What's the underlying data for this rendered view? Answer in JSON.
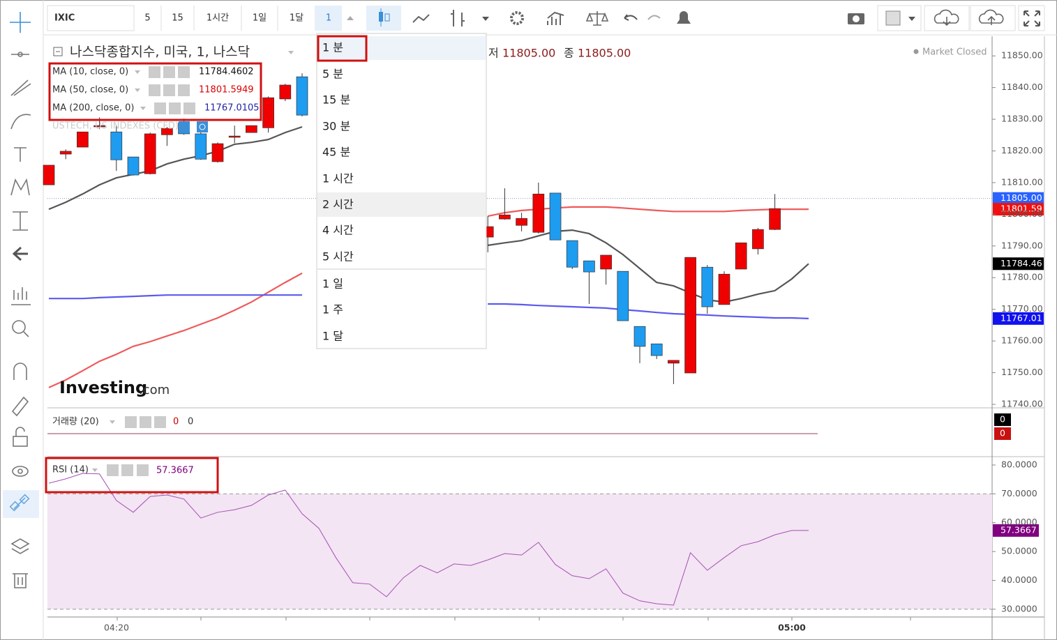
{
  "toolbar": {
    "symbol": "IXIC",
    "intervals": [
      "5",
      "15",
      "1시간",
      "1일",
      "1달"
    ],
    "active_interval": "1"
  },
  "legend": {
    "title": "나스닥종합지수, 미국, 1, 나스닥",
    "low_label": "저",
    "low_value": "11805.00",
    "close_label": "종",
    "close_value": "11805.00",
    "status": "Market Closed",
    "overlay": "USTECH, US INDEXES (CFD)"
  },
  "logo": {
    "brand": "Investing",
    "suffix": ".com"
  },
  "interval_menu": [
    "1 분",
    "5 분",
    "15 분",
    "30 분",
    "45 분",
    "1 시간",
    "2 시간",
    "4 시간",
    "5 시간",
    "1 일",
    "1 주",
    "1 달"
  ],
  "volume": {
    "name": "거래량 (20)",
    "values": [
      "0",
      "0"
    ],
    "tags": [
      "0",
      "0"
    ]
  },
  "chart_data": [
    {
      "type": "candlestick",
      "up_color": "#f00000",
      "down_color": "#1e9cf0",
      "ohlc": [
        [
          11809.3,
          11815.5,
          11809.3,
          11815.5
        ],
        [
          11819.0,
          11820.5,
          11817.4,
          11819.9
        ],
        [
          11821.2,
          11826.0,
          11821.2,
          11826.0
        ],
        [
          11827.6,
          11830.6,
          11826.9,
          11828.0
        ],
        [
          11826.0,
          11828.0,
          11813.7,
          11817.2
        ],
        [
          11818.1,
          11818.1,
          11812.2,
          11812.4
        ],
        [
          11812.8,
          11825.8,
          11812.6,
          11825.4
        ],
        [
          11825.1,
          11827.6,
          11821.6,
          11827.1
        ],
        [
          11828.9,
          11830.2,
          11825.1,
          11825.4
        ],
        [
          11825.4,
          11826.9,
          11817.2,
          11817.4
        ],
        [
          11816.6,
          11822.7,
          11816.3,
          11822.3
        ],
        [
          11824.3,
          11828.0,
          11822.5,
          11824.7
        ],
        [
          11825.8,
          11828.0,
          11825.8,
          11828.0
        ],
        [
          11827.3,
          11837.2,
          11825.8,
          11836.8
        ],
        [
          11836.4,
          11841.2,
          11835.7,
          11840.8
        ],
        [
          11843.4,
          11844.5,
          11830.9,
          11831.3
        ],
        null,
        null,
        null,
        null,
        null,
        null,
        null,
        null,
        null,
        null,
        [
          11792.8,
          11799.4,
          11788.0,
          11796.1
        ],
        [
          11798.5,
          11808.2,
          11798.3,
          11799.8
        ],
        [
          11796.5,
          11800.5,
          11794.6,
          11798.7
        ],
        [
          11794.3,
          11810.0,
          11793.9,
          11806.4
        ],
        [
          11806.7,
          11806.7,
          11791.9,
          11791.9
        ],
        [
          11791.7,
          11791.7,
          11782.7,
          11783.3
        ],
        [
          11785.3,
          11785.3,
          11771.7,
          11781.8
        ],
        [
          11782.7,
          11787.1,
          11777.8,
          11787.1
        ],
        [
          11782.0,
          11782.0,
          11766.4,
          11766.4
        ],
        [
          11764.6,
          11764.6,
          11753.0,
          11758.3
        ],
        [
          11759.1,
          11759.1,
          11754.3,
          11755.4
        ],
        [
          11753.0,
          11753.9,
          11746.4,
          11753.9
        ],
        [
          11749.9,
          11786.4,
          11749.9,
          11786.4
        ],
        [
          11783.3,
          11784.0,
          11768.6,
          11770.8
        ],
        [
          11771.5,
          11782.0,
          11771.5,
          11781.1
        ],
        [
          11782.7,
          11791.0,
          11782.7,
          11791.0
        ],
        [
          11789.1,
          11795.7,
          11787.3,
          11795.2
        ],
        [
          11795.2,
          11806.4,
          11795.0,
          11801.8
        ],
        null,
        null
      ],
      "series": [
        {
          "name": "MA (10, close, 0)",
          "color": "#555555",
          "label_color": "#111111",
          "last_label": "11784.4602",
          "tag": "11784.46",
          "tag_color": "#000000",
          "values": [
            11801.6,
            11803.8,
            11806.4,
            11809.3,
            11811.5,
            11812.6,
            11813.7,
            11815.9,
            11817.4,
            11818.5,
            11819.9,
            11822.1,
            11822.7,
            11823.6,
            11825.8,
            11827.6,
            null,
            null,
            null,
            null,
            null,
            null,
            null,
            null,
            null,
            null,
            11790.2,
            11791.0,
            11791.7,
            11793.2,
            11794.6,
            11795.0,
            11793.9,
            11791.0,
            11787.3,
            11782.9,
            11778.5,
            11777.4,
            11775.2,
            11773.0,
            11772.3,
            11773.4,
            11774.8,
            11775.9,
            11779.6,
            11784.4
          ]
        },
        {
          "name": "MA (50, close, 0)",
          "color": "#ee5a5a",
          "label_color": "#dd0000",
          "last_label": "11801.5949",
          "tag": "11801.59",
          "tag_color": "#ee1111",
          "values": [
            11745.3,
            11747.7,
            11750.6,
            11753.6,
            11755.8,
            11758.3,
            11759.8,
            11761.6,
            11763.3,
            11765.3,
            11767.3,
            11769.7,
            11772.3,
            11775.4,
            11778.5,
            11781.4,
            null,
            null,
            null,
            null,
            null,
            null,
            null,
            null,
            null,
            null,
            11799.4,
            11800.5,
            11801.2,
            11801.6,
            11802.0,
            11802.3,
            11802.3,
            11802.3,
            11802.0,
            11801.6,
            11801.2,
            11800.9,
            11800.9,
            11800.9,
            11800.9,
            11801.2,
            11801.4,
            11801.6,
            11801.6,
            11801.6
          ]
        },
        {
          "name": "MA (200, close, 0)",
          "color": "#5a5aee",
          "label_color": "#2222aa",
          "last_label": "11767.0105",
          "tag": "11767.01",
          "tag_color": "#1111ee",
          "values": [
            11773.4,
            11773.4,
            11773.4,
            11773.7,
            11773.9,
            11774.1,
            11774.3,
            11774.5,
            11774.5,
            11774.5,
            11774.5,
            11774.5,
            11774.5,
            11774.5,
            11774.5,
            11774.5,
            null,
            null,
            null,
            null,
            null,
            null,
            null,
            null,
            null,
            null,
            11771.7,
            11771.7,
            11771.5,
            11771.2,
            11771.0,
            11770.8,
            11770.6,
            11770.4,
            11769.9,
            11769.5,
            11769.0,
            11768.6,
            11768.4,
            11768.2,
            11767.9,
            11767.7,
            11767.5,
            11767.3,
            11767.3,
            11767.1
          ]
        }
      ],
      "last_price": 11805,
      "last_price_label": "11805.00",
      "last_price_color": "#2962ff",
      "ylim": [
        11738.9,
        11856.2
      ],
      "yticks": [
        {
          "value": 11740,
          "label": "11740.00"
        },
        {
          "value": 11750,
          "label": "11750.00"
        },
        {
          "value": 11760,
          "label": "11760.00"
        },
        {
          "value": 11770,
          "label": "11770.00"
        },
        {
          "value": 11780,
          "label": "11780.00"
        },
        {
          "value": 11790,
          "label": "11790.00"
        },
        {
          "value": 11800,
          "label": "11800.00"
        },
        {
          "value": 11810,
          "label": "11810.00"
        },
        {
          "value": 11820,
          "label": "11820.00"
        },
        {
          "value": 11830,
          "label": "11830.00"
        },
        {
          "value": 11840,
          "label": "11840.00"
        },
        {
          "value": 11850,
          "label": "11850.00"
        }
      ],
      "x_labels": [
        "04:20",
        "05:00"
      ]
    },
    {
      "type": "line",
      "name": "RSI (14)",
      "color": "#a64fb5",
      "band_color": "#f3e5f3",
      "last_label": "57.3667",
      "tag": "57.3667",
      "tag_color": "#800080",
      "values": [
        73.7,
        75.2,
        77.1,
        76.9,
        67.7,
        63.6,
        69.1,
        69.6,
        68.2,
        61.6,
        63.6,
        64.5,
        66.0,
        69.6,
        71.3,
        63.1,
        58.0,
        47.9,
        39.2,
        38.7,
        34.3,
        40.9,
        45.2,
        42.6,
        45.7,
        45.2,
        47.1,
        49.3,
        48.8,
        53.2,
        45.5,
        41.6,
        40.6,
        44.0,
        35.6,
        32.9,
        31.9,
        31.4,
        49.6,
        43.5,
        47.9,
        52.0,
        53.4,
        55.8,
        57.3,
        57.3
      ],
      "band": [
        30,
        70
      ],
      "ylim": [
        27.3,
        82.9
      ],
      "yticks": [
        {
          "value": 30,
          "label": "30.0000"
        },
        {
          "value": 40,
          "label": "40.0000"
        },
        {
          "value": 50,
          "label": "50.0000"
        },
        {
          "value": 60,
          "label": "60.0000"
        },
        {
          "value": 70,
          "label": "70.0000"
        },
        {
          "value": 80,
          "label": "80.0000"
        }
      ]
    }
  ]
}
